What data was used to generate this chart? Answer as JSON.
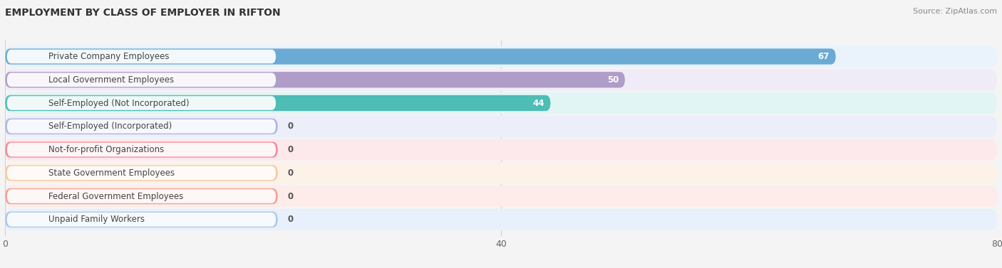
{
  "title": "EMPLOYMENT BY CLASS OF EMPLOYER IN RIFTON",
  "source": "Source: ZipAtlas.com",
  "categories": [
    "Private Company Employees",
    "Local Government Employees",
    "Self-Employed (Not Incorporated)",
    "Self-Employed (Incorporated)",
    "Not-for-profit Organizations",
    "State Government Employees",
    "Federal Government Employees",
    "Unpaid Family Workers"
  ],
  "values": [
    67,
    50,
    44,
    0,
    0,
    0,
    0,
    0
  ],
  "bar_colors": [
    "#6aaad4",
    "#b09cc8",
    "#4dbdb5",
    "#a8b4e8",
    "#f4889a",
    "#f5c8a0",
    "#f0a090",
    "#a8c8e8"
  ],
  "row_bg_colors": [
    "#eaf2fb",
    "#f0ecf7",
    "#e0f5f4",
    "#eceef9",
    "#fde8ec",
    "#fdf2e8",
    "#fdecea",
    "#e8f0fb"
  ],
  "xlim_max": 80,
  "xticks": [
    0,
    40,
    80
  ],
  "background_color": "#f4f4f4",
  "title_fontsize": 10,
  "bar_label_fontsize": 8.5,
  "category_fontsize": 8.5,
  "value_color_inside": "#ffffff",
  "value_color_outside": "#555555",
  "zero_bar_width": 22
}
